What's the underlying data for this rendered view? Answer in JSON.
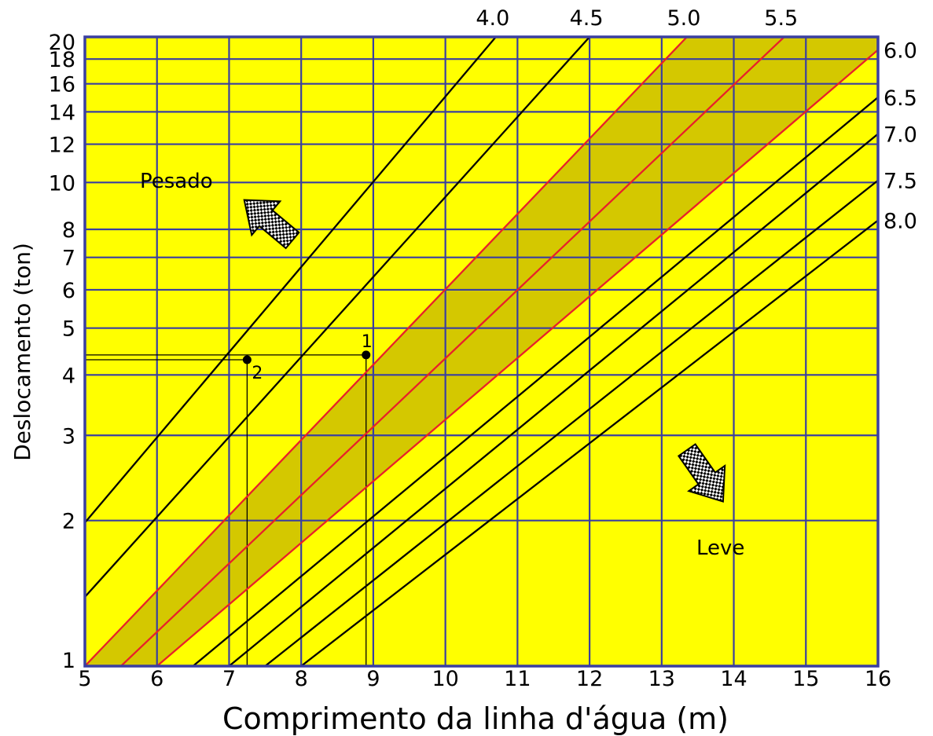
{
  "chart_data": {
    "type": "line",
    "xlabel": "Comprimento da linha d'água (m)",
    "ylabel": "Deslocamento (ton)",
    "x_ticks": [
      "5",
      "6",
      "7",
      "8",
      "9",
      "10",
      "11",
      "12",
      "13",
      "14",
      "15",
      "16"
    ],
    "y_ticks": [
      "1",
      "2",
      "3",
      "4",
      "5",
      "6",
      "7",
      "8",
      "10",
      "12",
      "14",
      "16",
      "18",
      "20"
    ],
    "xlim": [
      5,
      16
    ],
    "ylim": [
      1,
      20
    ],
    "y_scale": "log",
    "grid": true,
    "series": [
      {
        "name": "4.0",
        "color": "#000000",
        "x": [
          5,
          10.7
        ],
        "y": [
          1.98,
          20
        ]
      },
      {
        "name": "4.5",
        "color": "#000000",
        "x": [
          5,
          12.0
        ],
        "y": [
          1.39,
          20
        ]
      },
      {
        "name": "5.0",
        "color": "#e8202a",
        "x": [
          5,
          13.35
        ],
        "y": [
          1.0,
          20
        ]
      },
      {
        "name": "5.5",
        "color": "#e8202a",
        "x": [
          5.5,
          14.7
        ],
        "y": [
          1.0,
          20
        ]
      },
      {
        "name": "6.0",
        "color": "#e8202a",
        "x": [
          6.0,
          16.0
        ],
        "y": [
          1.0,
          18.8
        ]
      },
      {
        "name": "6.5",
        "color": "#000000",
        "x": [
          6.5,
          16.0
        ],
        "y": [
          1.0,
          15.0
        ]
      },
      {
        "name": "7.0",
        "color": "#000000",
        "x": [
          7.0,
          16.0
        ],
        "y": [
          1.0,
          12.6
        ]
      },
      {
        "name": "7.5",
        "color": "#000000",
        "x": [
          7.5,
          16.0
        ],
        "y": [
          1.0,
          10.1
        ]
      },
      {
        "name": "8.0",
        "color": "#000000",
        "x": [
          8.0,
          16.0
        ],
        "y": [
          1.0,
          8.35
        ]
      }
    ],
    "shaded_band": {
      "between": [
        "5.0",
        "6.0"
      ],
      "color": "#d4c800"
    },
    "points": [
      {
        "label": "1",
        "x": 8.9,
        "y": 4.4
      },
      {
        "label": "2",
        "x": 7.25,
        "y": 4.3
      }
    ],
    "annotations": [
      {
        "text": "Pesado",
        "arrow": "up-left"
      },
      {
        "text": "Leve",
        "arrow": "down-right"
      }
    ],
    "colors": {
      "background": "#ffff00",
      "grid": "#3a3fa0",
      "frame": "#3a3fa0",
      "band": "#d4c800"
    }
  }
}
